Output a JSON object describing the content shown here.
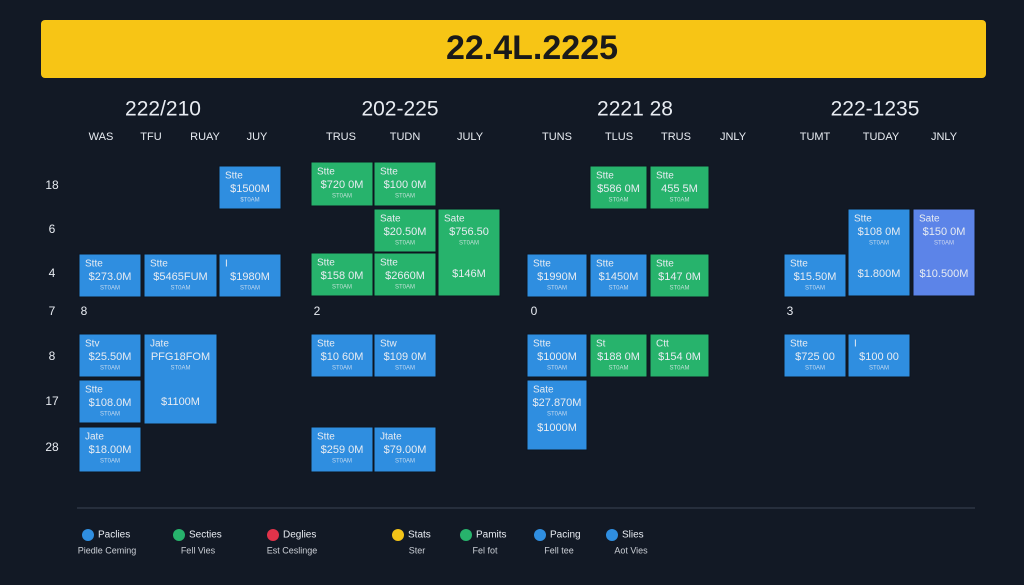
{
  "header": {
    "title": "22.4L.2225"
  },
  "rows": [
    "18",
    "6",
    "4",
    "7",
    "8",
    "17",
    "28"
  ],
  "panels": [
    {
      "title": "222/210",
      "columns": [
        "WAS",
        "TFU",
        "RUAY",
        "JUY"
      ],
      "section": "8",
      "cards": [
        {
          "label": "Stte",
          "value": "$1500M",
          "sub": "$T0AM"
        },
        {
          "label": "Stte",
          "value": "$273.0M",
          "sub": "ST0AM"
        },
        {
          "label": "Stte",
          "value": "$5465FUM",
          "sub": "ST0AM"
        },
        {
          "label": "I",
          "value": "$1980M",
          "sub": "ST0AM"
        },
        {
          "label": "Stv",
          "value": "$25.50M",
          "sub": "ST0AM"
        },
        {
          "label": "Jate",
          "value": "PFG18FOM",
          "sub": "ST0AM",
          "extra": "$1100M"
        },
        {
          "label": "Stte",
          "value": "$108.0M",
          "sub": "ST0AM"
        },
        {
          "label": "Jate",
          "value": "$18.00M",
          "sub": "ST0AM"
        }
      ]
    },
    {
      "title": "202-225",
      "columns": [
        "TRUS",
        "TUDN",
        "JULY"
      ],
      "section": "2",
      "cards": [
        {
          "label": "Stte",
          "value": "$720 0M",
          "sub": "ST0AM"
        },
        {
          "label": "Stte",
          "value": "$100 0M",
          "sub": "ST0AM"
        },
        {
          "label": "Sate",
          "value": "$20.50M",
          "sub": "ST0AM"
        },
        {
          "label": "Sate",
          "value": "$756.50",
          "sub": "ST0AM",
          "extra": "$146M"
        },
        {
          "label": "Stte",
          "value": "$158 0M",
          "sub": "ST0AM"
        },
        {
          "label": "Stte",
          "value": "$2660M",
          "sub": "ST0AM"
        },
        {
          "label": "Stte",
          "value": "$10 60M",
          "sub": "ST0AM"
        },
        {
          "label": "Stw",
          "value": "$109 0M",
          "sub": "ST0AM"
        },
        {
          "label": "Stte",
          "value": "$259 0M",
          "sub": "ST0AM"
        },
        {
          "label": "Jtate",
          "value": "$79.00M",
          "sub": "ST0AM"
        }
      ]
    },
    {
      "title": "2221 28",
      "columns": [
        "TUNS",
        "TLUS",
        "TRUS",
        "JNLY"
      ],
      "section": "0",
      "cards": [
        {
          "label": "Stte",
          "value": "$586 0M",
          "sub": "ST0AM"
        },
        {
          "label": "Stte",
          "value": "455 5M",
          "sub": "ST0AM"
        },
        {
          "label": "Stte",
          "value": "$1990M",
          "sub": "ST0AM"
        },
        {
          "label": "Stte",
          "value": "$1450M",
          "sub": "ST0AM"
        },
        {
          "label": "Stte",
          "value": "$147 0M",
          "sub": "ST0AM"
        },
        {
          "label": "Stte",
          "value": "$1000M",
          "sub": "ST0AM"
        },
        {
          "label": "St",
          "value": "$188 0M",
          "sub": "ST0AM"
        },
        {
          "label": "Ctt",
          "value": "$154 0M",
          "sub": "ST0AM"
        },
        {
          "label": "Sate",
          "value": "$27.870M",
          "sub": "ST0AM",
          "extra": "$1000M"
        }
      ]
    },
    {
      "title": "222-1235",
      "columns": [
        "TUMT",
        "TUDAY",
        "JNLY"
      ],
      "section": "3",
      "cards": [
        {
          "label": "Stte",
          "value": "$108 0M",
          "sub": "ST0AM",
          "extra": "$1.800M"
        },
        {
          "label": "Sate",
          "value": "$150 0M",
          "sub": "ST0AM",
          "extra": "$10.500M"
        },
        {
          "label": "Stte",
          "value": "$15.50M",
          "sub": "ST0AM"
        },
        {
          "label": "Stte",
          "value": "$725 00",
          "sub": "ST0AM"
        },
        {
          "label": "I",
          "value": "$100 00",
          "sub": "ST0AM"
        }
      ]
    }
  ],
  "legend": [
    {
      "label": "Paclies",
      "sub": "Piedle Ceming"
    },
    {
      "label": "Secties",
      "sub": "Fell Vies"
    },
    {
      "label": "Deglies",
      "sub": "Est Ceslinge"
    },
    {
      "label": "Stats",
      "sub": "Ster"
    },
    {
      "label": "Pamits",
      "sub": "Fel fot"
    },
    {
      "label": "Pacing",
      "sub": "Fell tee"
    },
    {
      "label": "Slies",
      "sub": "Aot Vies"
    }
  ]
}
